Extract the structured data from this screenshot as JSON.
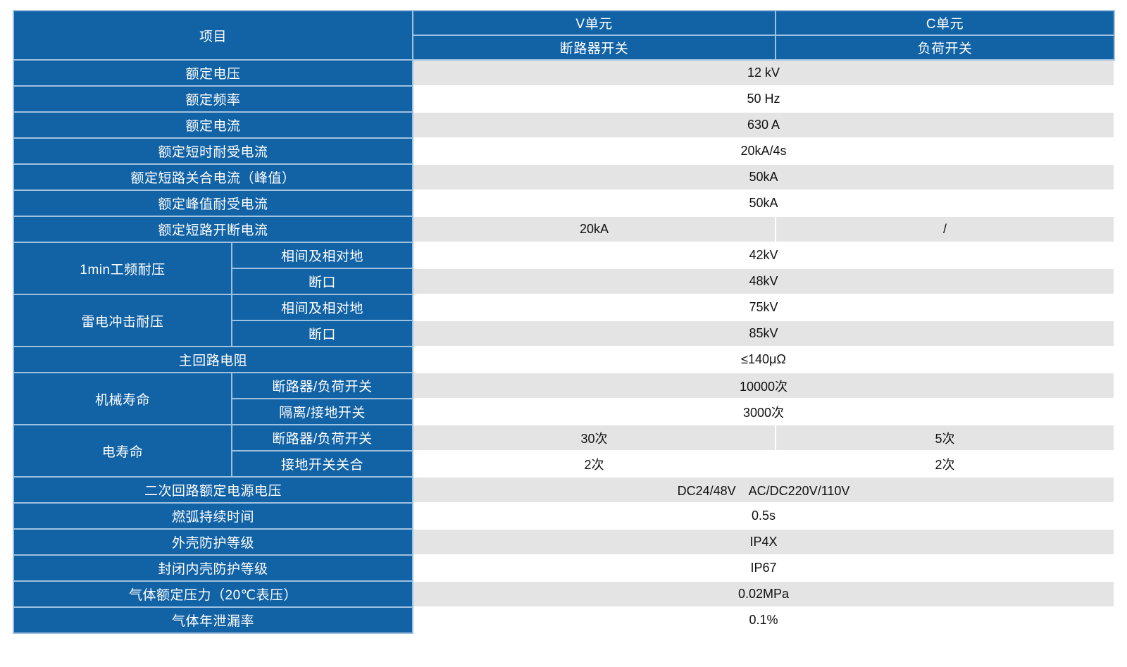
{
  "colors": {
    "header_blue": "#1262a6",
    "divider_light_blue": "#9fc1e0",
    "stripe_gray": "#e4e4e4",
    "value_text": "#111111",
    "label_text": "#ffffff"
  },
  "header": {
    "item": "项目",
    "v_unit": "V单元",
    "c_unit": "C单元",
    "v_switch": "断路器开关",
    "c_switch": "负荷开关"
  },
  "rows": [
    {
      "label": "额定电压",
      "value": "12 kV"
    },
    {
      "label": "额定频率",
      "value": "50 Hz"
    },
    {
      "label": "额定电流",
      "value": "630 A"
    },
    {
      "label": "额定短时耐受电流",
      "value": "20kA/4s"
    },
    {
      "label": "额定短路关合电流（峰值）",
      "value": "50kA"
    },
    {
      "label": "额定峰值耐受电流",
      "value": "50kA"
    },
    {
      "label": "额定短路开断电流",
      "value_v": "20kA",
      "value_c": "/"
    },
    {
      "group": "1min工频耐压",
      "sublabel": "相间及相对地",
      "value": "42kV"
    },
    {
      "sublabel": "断口",
      "value": "48kV"
    },
    {
      "group": "雷电冲击耐压",
      "sublabel": "相间及相对地",
      "value": "75kV"
    },
    {
      "sublabel": "断口",
      "value": "85kV"
    },
    {
      "label": "主回路电阻",
      "value": "≤140μΩ"
    },
    {
      "group": "机械寿命",
      "sublabel": "断路器/负荷开关",
      "value": "10000次"
    },
    {
      "sublabel": "隔离/接地开关",
      "value": "3000次"
    },
    {
      "group": "电寿命",
      "sublabel": "断路器/负荷开关",
      "value_v": "30次",
      "value_c": "5次"
    },
    {
      "sublabel": "接地开关关合",
      "value_v": "2次",
      "value_c": "2次"
    },
    {
      "label": "二次回路额定电源电压",
      "value": "DC24/48V　AC/DC220V/110V"
    },
    {
      "label": "燃弧持续时间",
      "value": "0.5s"
    },
    {
      "label": "外壳防护等级",
      "value": "IP4X"
    },
    {
      "label": "封闭内壳防护等级",
      "value": "IP67"
    },
    {
      "label": "气体额定压力（20℃表压）",
      "value": "0.02MPa"
    },
    {
      "label": "气体年泄漏率",
      "value": "0.1%"
    }
  ]
}
